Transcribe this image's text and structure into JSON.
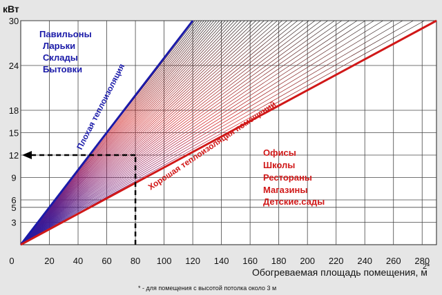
{
  "chart_data": {
    "type": "line",
    "ylabel": "кВт",
    "xlabel": "Обогреваемая площадь помещения, м",
    "xlabel_sup": "2*",
    "footnote": "* - для помещения с высотой потолка около 3 м",
    "xlim": [
      0,
      290
    ],
    "ylim": [
      0,
      30
    ],
    "grid": true,
    "x_ticks": [
      0,
      20,
      40,
      60,
      80,
      100,
      120,
      140,
      160,
      180,
      200,
      220,
      240,
      260,
      280
    ],
    "y_ticks": [
      3,
      5,
      6,
      9,
      12,
      15,
      18,
      24,
      30
    ],
    "series": [
      {
        "name": "Плохая теплоизоляция",
        "color": "#1a1aa8",
        "x": [
          0,
          120
        ],
        "y": [
          0,
          30
        ]
      },
      {
        "name": "Хорошая теплоизоляция помещений",
        "color": "#d01818",
        "x": [
          0,
          290
        ],
        "y": [
          0,
          30
        ]
      }
    ],
    "example": {
      "x": 80,
      "y": 12
    },
    "annotations": {
      "blue_group": [
        "Павильоны",
        "Ларьки",
        "Склады",
        "Бытовки"
      ],
      "red_group": [
        "Офисы",
        "Школы",
        "Рестораны",
        "Магазины",
        "Детские.сады"
      ]
    }
  }
}
